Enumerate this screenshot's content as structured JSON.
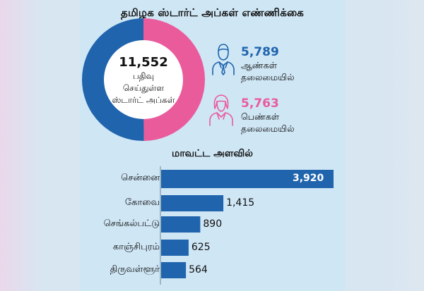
{
  "header": {
    "title": "தமிழக ஸ்டார்ட் அப்கள் எண்ணிக்கை",
    "subtitle": "மாவட்ட அளவில்"
  },
  "summary": {
    "total_value": "11,552",
    "total_label_lines": [
      "பதிவு",
      "செய்துள்ள",
      "ஸ்டார்ட் அப்கள்"
    ],
    "men": {
      "value": "5,789",
      "label_lines": [
        "ஆண்கள்",
        "தலைமையில்"
      ],
      "icon": "businessman-icon"
    },
    "women": {
      "value": "5,763",
      "label_lines": [
        "பெண்கள்",
        "தலைமையில்"
      ],
      "icon": "businesswoman-icon"
    }
  },
  "colors": {
    "accent_blue": "#1f64ad",
    "accent_pink": "#ea5b9c",
    "bar_blue": "#1f64ad"
  },
  "chart_data": [
    {
      "type": "pie",
      "categories": [
        "ஆண்கள் தலைமையில்",
        "பெண்கள் தலைமையில்"
      ],
      "values": [
        5789,
        5763
      ],
      "total": 11552,
      "colors": [
        "#1f64ad",
        "#ea5b9c"
      ]
    },
    {
      "type": "bar",
      "orientation": "horizontal",
      "title": "மாவட்ட அளவில்",
      "categories": [
        "சென்னை",
        "கோவை",
        "செங்கல்பட்டு",
        "காஞ்சிபுரம்",
        "திருவள்ளூர்"
      ],
      "values": [
        3920,
        1415,
        890,
        625,
        564
      ],
      "labels": [
        "3,920",
        "1,415",
        "890",
        "625",
        "564"
      ]
    }
  ]
}
